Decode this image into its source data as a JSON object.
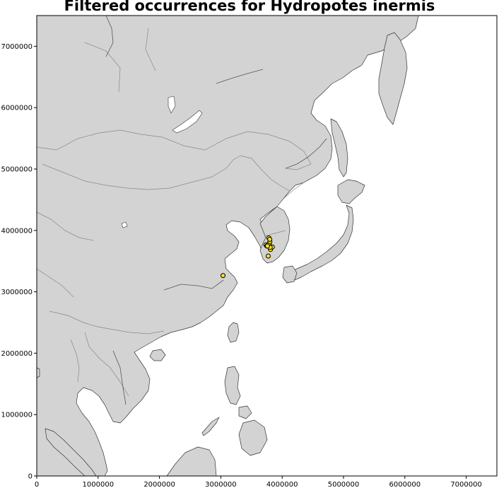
{
  "title": "Filtered occurrences for Hydropotes inermis",
  "colors": {
    "land": "#d3d3d3",
    "coast": "#333333",
    "border": "#888888",
    "ocean": "#ffffff",
    "point_fill": "#f5e12f",
    "point_edge": "#000000"
  },
  "chart_data": {
    "type": "scatter",
    "title": "Filtered occurrences for Hydropotes inermis",
    "xlim": [
      0,
      7500000
    ],
    "ylim": [
      0,
      7500000
    ],
    "x_ticks": [
      0,
      1000000,
      2000000,
      3000000,
      4000000,
      5000000,
      6000000,
      7000000
    ],
    "x_tick_labels": [
      "0",
      "1000000",
      "2000000",
      "3000000",
      "4000000",
      "5000000",
      "6000000",
      "7000000"
    ],
    "y_ticks": [
      0,
      1000000,
      2000000,
      3000000,
      4000000,
      5000000,
      6000000,
      7000000
    ],
    "y_tick_labels": [
      "0",
      "1000000",
      "2000000",
      "3000000",
      "4000000",
      "5000000",
      "6000000",
      "7000000"
    ],
    "grid": false,
    "points": [
      {
        "x": 3036000,
        "y": 3265000
      },
      {
        "x": 3773000,
        "y": 3583000
      },
      {
        "x": 3735000,
        "y": 3765000
      },
      {
        "x": 3750000,
        "y": 3745000
      },
      {
        "x": 3770000,
        "y": 3760000
      },
      {
        "x": 3790000,
        "y": 3790000
      },
      {
        "x": 3800000,
        "y": 3820000
      },
      {
        "x": 3783000,
        "y": 3878000
      },
      {
        "x": 3798000,
        "y": 3855000
      },
      {
        "x": 3810000,
        "y": 3690000
      },
      {
        "x": 3840000,
        "y": 3730000
      },
      {
        "x": 3805000,
        "y": 3725000
      },
      {
        "x": 3760000,
        "y": 3745000
      }
    ]
  }
}
